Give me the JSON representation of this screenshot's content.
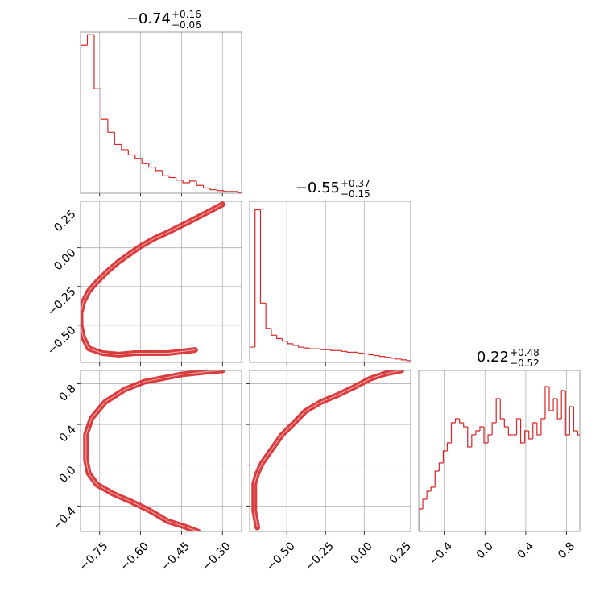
{
  "chart_data": {
    "type": "corner",
    "color": "#d62728",
    "grid": true,
    "parameters": [
      {
        "title": "−0.74",
        "title_upper": "+0.16",
        "title_lower": "−0.06",
        "lim": [
          -0.82,
          -0.23
        ],
        "ticks": [
          {
            "value": -0.75,
            "label": "−0.75"
          },
          {
            "value": -0.6,
            "label": "−0.60"
          },
          {
            "value": -0.45,
            "label": "−0.45"
          },
          {
            "value": -0.3,
            "label": "−0.30"
          }
        ],
        "bins": [
          -0.82,
          -0.795,
          -0.77,
          -0.745,
          -0.72,
          -0.695,
          -0.67,
          -0.645,
          -0.62,
          -0.595,
          -0.57,
          -0.545,
          -0.52,
          -0.495,
          -0.47,
          -0.445,
          -0.42,
          -0.395,
          -0.37,
          -0.345,
          -0.32,
          -0.295,
          -0.27,
          -0.245,
          -0.22
        ],
        "counts": [
          170,
          182,
          120,
          85,
          70,
          56,
          50,
          44,
          40,
          34,
          30,
          26,
          20,
          18,
          15,
          12,
          14,
          9,
          6,
          4,
          3,
          2,
          2,
          1
        ],
        "hist_ylim": [
          0,
          185
        ]
      },
      {
        "title": "−0.55",
        "title_upper": "+0.37",
        "title_lower": "−0.15",
        "lim": [
          -0.74,
          0.3
        ],
        "ticks": [
          {
            "value": -0.5,
            "label": "−0.50"
          },
          {
            "value": -0.25,
            "label": "−0.25"
          },
          {
            "value": 0,
            "label": "0.00"
          },
          0.25
        ],
        "bins": [
          -0.74,
          -0.705,
          -0.67,
          -0.635,
          -0.6,
          -0.565,
          -0.53,
          -0.495,
          -0.46,
          -0.425,
          -0.39,
          -0.355,
          -0.32,
          -0.285,
          -0.25,
          -0.215,
          -0.18,
          -0.145,
          -0.11,
          -0.075,
          -0.04,
          -0.005,
          0.03,
          0.065,
          0.1,
          0.135,
          0.17,
          0.205,
          0.24,
          0.275,
          0.31
        ],
        "counts": [
          18,
          180,
          70,
          40,
          32,
          28,
          25,
          22,
          20,
          18,
          17,
          16,
          16,
          15,
          15,
          14,
          14,
          13,
          12,
          12,
          11,
          10,
          9,
          8,
          7,
          6,
          5,
          4,
          3,
          2
        ],
        "hist_ylim": [
          0,
          190
        ]
      },
      {
        "title": "0.22",
        "title_upper": "+0.48",
        "title_lower": "−0.52",
        "lim": [
          -0.65,
          0.93
        ],
        "ticks": [
          {
            "value": -0.4,
            "label": "−0.4"
          },
          {
            "value": 0,
            "label": "0.0"
          },
          0.4,
          0.8
        ],
        "bins": [
          -0.65,
          -0.61,
          -0.57,
          -0.53,
          -0.49,
          -0.45,
          -0.41,
          -0.37,
          -0.33,
          -0.29,
          -0.25,
          -0.21,
          -0.17,
          -0.13,
          -0.09,
          -0.05,
          -0.01,
          0.03,
          0.07,
          0.11,
          0.15,
          0.19,
          0.23,
          0.27,
          0.31,
          0.35,
          0.39,
          0.43,
          0.47,
          0.51,
          0.55,
          0.59,
          0.63,
          0.67,
          0.71,
          0.75,
          0.79,
          0.83,
          0.87,
          0.91,
          0.95
        ],
        "counts": [
          28,
          40,
          50,
          55,
          75,
          85,
          100,
          110,
          135,
          140,
          135,
          130,
          105,
          120,
          125,
          130,
          110,
          120,
          135,
          165,
          140,
          130,
          120,
          120,
          140,
          110,
          125,
          115,
          135,
          120,
          140,
          180,
          150,
          165,
          140,
          175,
          120,
          155,
          125,
          120
        ],
        "hist_ylim": [
          0,
          200
        ]
      }
    ],
    "pairs": [
      {
        "x": [
          -0.4,
          -0.5,
          -0.62,
          -0.68,
          -0.74,
          -0.79,
          -0.81,
          -0.82,
          -0.82,
          -0.81,
          -0.79,
          -0.76,
          -0.72,
          -0.68,
          -0.64,
          -0.6,
          -0.55,
          -0.5,
          -0.42,
          -0.3
        ],
        "y": [
          -0.66,
          -0.68,
          -0.68,
          -0.69,
          -0.68,
          -0.65,
          -0.58,
          -0.5,
          -0.42,
          -0.35,
          -0.28,
          -0.22,
          -0.15,
          -0.09,
          -0.04,
          0.01,
          0.06,
          0.1,
          0.17,
          0.28
        ]
      },
      {
        "x": [
          -0.3,
          -0.35,
          -0.45,
          -0.585,
          -0.66,
          -0.73,
          -0.78,
          -0.8,
          -0.8,
          -0.79,
          -0.76,
          -0.7,
          -0.64,
          -0.57,
          -0.5,
          -0.44,
          -0.39
        ],
        "y": [
          0.93,
          0.92,
          0.89,
          0.82,
          0.74,
          0.62,
          0.46,
          0.3,
          0.05,
          -0.08,
          -0.19,
          -0.28,
          -0.35,
          -0.44,
          -0.55,
          -0.6,
          -0.65
        ]
      },
      {
        "x": [
          -0.69,
          -0.71,
          -0.71,
          -0.69,
          -0.66,
          -0.6,
          -0.53,
          -0.45,
          -0.38,
          -0.28,
          -0.17,
          -0.06,
          0.04,
          0.14,
          0.24
        ],
        "y": [
          -0.61,
          -0.45,
          -0.18,
          -0.08,
          0.02,
          0.15,
          0.3,
          0.42,
          0.53,
          0.62,
          0.69,
          0.77,
          0.85,
          0.9,
          0.93
        ]
      }
    ]
  }
}
